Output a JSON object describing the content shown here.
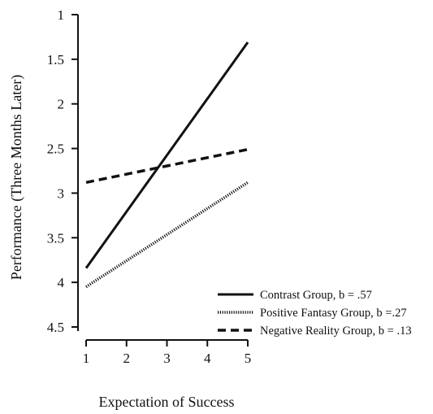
{
  "chart_data": {
    "type": "line",
    "xlabel": "Expectation of Success",
    "ylabel": "Performance (Three Months Later)",
    "x_ticks": [
      "1",
      "2",
      "3",
      "4",
      "5"
    ],
    "y_ticks": [
      "1",
      "1.5",
      "2",
      "2.5",
      "3",
      "3.5",
      "4",
      "4.5"
    ],
    "xlim": [
      1,
      5
    ],
    "ylim": [
      1,
      4.5
    ],
    "y_inverted": true,
    "grid": false,
    "legend_position": "bottom-right",
    "series": [
      {
        "name": "Contrast Group, b = .57",
        "style": "solid",
        "x": [
          1,
          5
        ],
        "y": [
          3.84,
          1.31
        ]
      },
      {
        "name": "Positive Fantasy Group, b =.27",
        "style": "dotted",
        "x": [
          1,
          5
        ],
        "y": [
          4.05,
          2.88
        ]
      },
      {
        "name": "Negative Reality Group, b = .13",
        "style": "dashed",
        "x": [
          1,
          5
        ],
        "y": [
          2.88,
          2.51
        ]
      }
    ],
    "colors": {
      "line": "#111111",
      "axis": "#111111"
    }
  }
}
